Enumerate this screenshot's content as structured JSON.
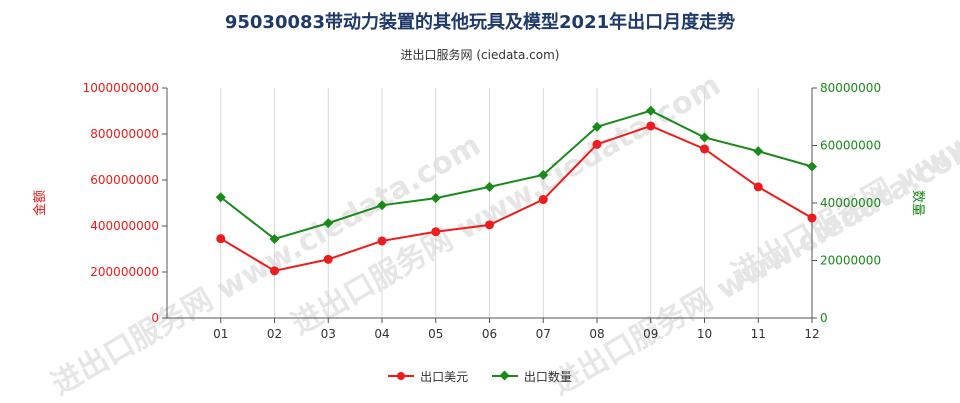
{
  "header": {
    "title": "95030083带动力装置的其他玩具及模型2021年出口月度走势",
    "subtitle": "进出口服务网 (ciedata.com)"
  },
  "watermark": "进出口服务网 www.ciedata.com",
  "colors": {
    "amount": "#ee1c1c",
    "quantity": "#1a8a1a",
    "axis_left": "#ee1c1c",
    "axis_right": "#1a8a1a"
  },
  "chart_data": {
    "type": "line",
    "title": "95030083带动力装置的其他玩具及模型2021年出口月度走势",
    "categories": [
      "01",
      "02",
      "03",
      "04",
      "05",
      "06",
      "07",
      "08",
      "09",
      "10",
      "11",
      "12"
    ],
    "y_left": {
      "label": "金额",
      "lim": [
        0,
        1000000000
      ],
      "ticks": [
        "0",
        "200000000",
        "400000000",
        "600000000",
        "800000000",
        "1000000000"
      ]
    },
    "y_right": {
      "label": "数量",
      "lim": [
        0,
        80000000
      ],
      "ticks": [
        "0",
        "20000000",
        "40000000",
        "60000000",
        "80000000"
      ]
    },
    "series": [
      {
        "name": "出口美元",
        "axis": "left",
        "color": "#ee1c1c",
        "values": [
          345000000,
          205000000,
          255000000,
          335000000,
          375000000,
          405000000,
          515000000,
          755000000,
          835000000,
          735000000,
          570000000,
          435000000
        ]
      },
      {
        "name": "出口数量",
        "axis": "right",
        "color": "#1a8a1a",
        "values": [
          42000000,
          27500000,
          33000000,
          39200000,
          41700000,
          45600000,
          49800000,
          66500000,
          72100000,
          62800000,
          58000000,
          52700000
        ]
      }
    ],
    "grid": "vertical",
    "legend": "bottom-center"
  }
}
